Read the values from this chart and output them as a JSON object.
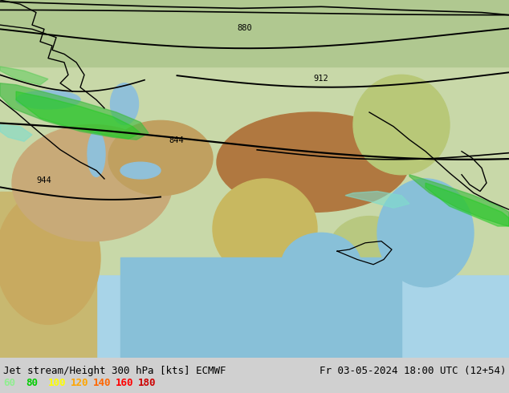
{
  "title_left": "Jet stream/Height 300 hPa [kts] ECMWF",
  "title_right": "Fr 03-05-2024 18:00 UTC (12+54)",
  "legend_values": [
    60,
    80,
    100,
    120,
    140,
    160,
    180
  ],
  "legend_colors": [
    "#90ee90",
    "#00cc00",
    "#ffff00",
    "#ffa500",
    "#ff6600",
    "#ff0000",
    "#cc0000"
  ],
  "bg_color": "#87ceeb",
  "bottom_bar_color": "#d0d0d0",
  "text_color": "#000000",
  "font_size_title": 9,
  "font_size_legend": 9
}
